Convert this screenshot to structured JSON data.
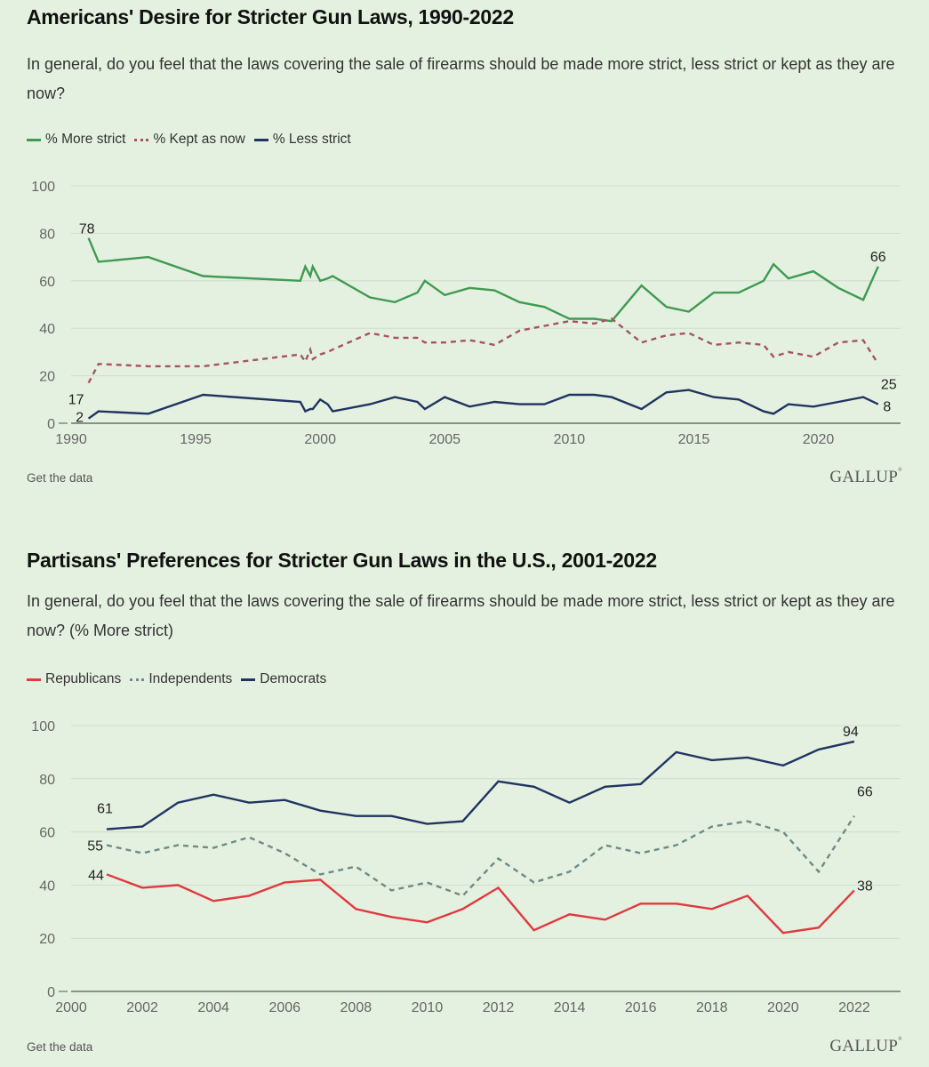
{
  "charts": [
    {
      "title": "Americans' Desire for Stricter Gun Laws, 1990-2022",
      "subtitle": "In general, do you feel that the laws covering the sale of firearms should be made more strict, less strict or kept as they are now?",
      "footer_link": "Get the data",
      "logo": "GALLUP",
      "legend": [
        {
          "label": "% More strict",
          "color": "#3f9a52",
          "style": "solid"
        },
        {
          "label": "% Kept as now",
          "color": "#a65266",
          "style": "dashed"
        },
        {
          "label": "% Less strict",
          "color": "#1f3461",
          "style": "solid"
        }
      ]
    },
    {
      "title": "Partisans' Preferences for Stricter Gun Laws in the U.S., 2001-2022",
      "subtitle": "In general, do you feel that the laws covering the sale of firearms should be made more strict, less strict or kept as they are now? (% More strict)",
      "footer_link": "Get the data",
      "logo": "GALLUP",
      "legend": [
        {
          "label": "Republicans",
          "color": "#e0393e",
          "style": "solid"
        },
        {
          "label": "Independents",
          "color": "#6f8a86",
          "style": "dashed"
        },
        {
          "label": "Democrats",
          "color": "#1f3461",
          "style": "solid"
        }
      ]
    }
  ],
  "chart_data": [
    {
      "type": "line",
      "title": "Americans' Desire for Stricter Gun Laws, 1990-2022",
      "xlabel": "",
      "ylabel": "",
      "xlim": [
        1990,
        2023.3
      ],
      "ylim": [
        0,
        100
      ],
      "x_ticks": [
        1990,
        1995,
        2000,
        2005,
        2010,
        2015,
        2020
      ],
      "y_ticks": [
        0,
        20,
        40,
        60,
        80,
        100
      ],
      "grid": true,
      "legend_position": "top-left",
      "series": [
        {
          "name": "% More strict",
          "color": "#3f9a52",
          "dashed": false,
          "x": [
            1990.7,
            1991.1,
            1993.1,
            1995.3,
            1999.2,
            1999.4,
            1999.6,
            1999.7,
            2000.0,
            2000.3,
            2000.5,
            2002.0,
            2003.0,
            2003.9,
            2004.2,
            2005.0,
            2006.0,
            2007.0,
            2008.0,
            2009.0,
            2010.0,
            2011.0,
            2011.7,
            2012.9,
            2013.9,
            2014.8,
            2015.8,
            2016.8,
            2017.8,
            2018.2,
            2018.8,
            2019.8,
            2020.8,
            2021.8,
            2022.4
          ],
          "values": [
            78,
            68,
            70,
            62,
            60,
            66,
            62,
            66,
            60,
            61,
            62,
            53,
            51,
            55,
            60,
            54,
            57,
            56,
            51,
            49,
            44,
            44,
            43,
            58,
            49,
            47,
            55,
            55,
            60,
            67,
            61,
            64,
            57,
            52,
            66
          ],
          "end_labels": {
            "first": "78",
            "last": "66"
          }
        },
        {
          "name": "% Kept as now",
          "color": "#a65266",
          "dashed": true,
          "x": [
            1990.7,
            1991.1,
            1993.1,
            1995.3,
            1999.2,
            1999.4,
            1999.6,
            1999.7,
            2000.0,
            2000.3,
            2000.5,
            2002.0,
            2003.0,
            2003.9,
            2004.2,
            2005.0,
            2006.0,
            2007.0,
            2008.0,
            2009.0,
            2010.0,
            2011.0,
            2011.7,
            2012.9,
            2013.9,
            2014.8,
            2015.8,
            2016.8,
            2017.8,
            2018.2,
            2018.8,
            2019.8,
            2020.8,
            2021.8,
            2022.4
          ],
          "values": [
            17,
            25,
            24,
            24,
            29,
            26,
            31,
            27,
            29,
            30,
            31,
            38,
            36,
            36,
            34,
            34,
            35,
            33,
            39,
            41,
            43,
            42,
            44,
            34,
            37,
            38,
            33,
            34,
            33,
            28,
            30,
            28,
            34,
            35,
            25
          ],
          "end_labels": {
            "first": "17",
            "last": "25"
          }
        },
        {
          "name": "% Less strict",
          "color": "#1f3461",
          "dashed": false,
          "x": [
            1990.7,
            1991.1,
            1993.1,
            1995.3,
            1999.2,
            1999.4,
            1999.6,
            1999.7,
            2000.0,
            2000.3,
            2000.5,
            2002.0,
            2003.0,
            2003.9,
            2004.2,
            2005.0,
            2006.0,
            2007.0,
            2008.0,
            2009.0,
            2010.0,
            2011.0,
            2011.7,
            2012.9,
            2013.9,
            2014.8,
            2015.8,
            2016.8,
            2017.8,
            2018.2,
            2018.8,
            2019.8,
            2020.8,
            2021.8,
            2022.4
          ],
          "values": [
            2,
            5,
            4,
            12,
            9,
            5,
            6,
            6,
            10,
            8,
            5,
            8,
            11,
            9,
            6,
            11,
            7,
            9,
            8,
            8,
            12,
            12,
            11,
            6,
            13,
            14,
            11,
            10,
            5,
            4,
            8,
            7,
            9,
            11,
            8
          ],
          "end_labels": {
            "first": "2",
            "last": "8"
          }
        }
      ]
    },
    {
      "type": "line",
      "title": "Partisans' Preferences for Stricter Gun Laws in the U.S., 2001-2022",
      "xlabel": "",
      "ylabel": "",
      "xlim": [
        2000,
        2023.3
      ],
      "ylim": [
        0,
        100
      ],
      "x_ticks": [
        2000,
        2002,
        2004,
        2006,
        2008,
        2010,
        2012,
        2014,
        2016,
        2018,
        2020,
        2022
      ],
      "y_ticks": [
        0,
        20,
        40,
        60,
        80,
        100
      ],
      "grid": true,
      "legend_position": "top-left",
      "x": [
        2001,
        2002,
        2003,
        2004,
        2005,
        2006,
        2007,
        2008,
        2009,
        2010,
        2011,
        2012,
        2013,
        2014,
        2015,
        2016,
        2017,
        2018,
        2019,
        2020,
        2021,
        2022
      ],
      "series": [
        {
          "name": "Republicans",
          "color": "#e0393e",
          "dashed": false,
          "values": [
            44,
            39,
            40,
            34,
            36,
            41,
            42,
            31,
            28,
            26,
            31,
            39,
            23,
            29,
            27,
            33,
            33,
            31,
            36,
            22,
            24,
            38
          ],
          "end_labels": {
            "first": "44",
            "last": "38"
          }
        },
        {
          "name": "Independents",
          "color": "#6f8a86",
          "dashed": true,
          "values": [
            55,
            52,
            55,
            54,
            58,
            52,
            44,
            47,
            38,
            41,
            36,
            50,
            41,
            45,
            55,
            52,
            55,
            62,
            64,
            60,
            45,
            66
          ],
          "end_labels": {
            "first": "55",
            "last": "66"
          }
        },
        {
          "name": "Democrats",
          "color": "#1f3461",
          "dashed": false,
          "values": [
            61,
            62,
            71,
            74,
            71,
            72,
            68,
            66,
            66,
            63,
            64,
            79,
            77,
            71,
            77,
            78,
            90,
            87,
            88,
            85,
            91,
            94
          ],
          "end_labels": {
            "first": "61",
            "last": "94"
          }
        }
      ]
    }
  ]
}
